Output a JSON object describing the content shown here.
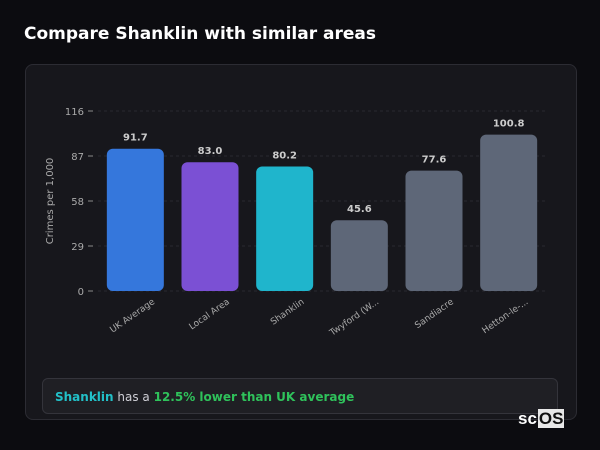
{
  "title": "Compare Shanklin with similar areas",
  "chart_data": {
    "type": "bar",
    "ylabel": "Crimes per 1,000",
    "xlabel": "",
    "ylim": [
      0,
      116
    ],
    "yticks": [
      0,
      29,
      58,
      87,
      116
    ],
    "grid": true,
    "categories": [
      "UK Average",
      "Local Area",
      "Shanklin",
      "Twyford (W...",
      "Sandiacre",
      "Hetton-le-..."
    ],
    "values": [
      91.7,
      83.0,
      80.2,
      45.6,
      77.6,
      100.8
    ],
    "value_labels": [
      "91.7",
      "83.0",
      "80.2",
      "45.6",
      "77.6",
      "100.8"
    ],
    "colors": [
      "#3577dc",
      "#7b50d4",
      "#1fb5cc",
      "#5e6778",
      "#5e6778",
      "#5e6778"
    ]
  },
  "summary": {
    "area": "Shanklin",
    "mid": " has a ",
    "comparison": "12.5% lower than UK average"
  },
  "logo": {
    "prefix": "sc",
    "suffix": "OS"
  }
}
